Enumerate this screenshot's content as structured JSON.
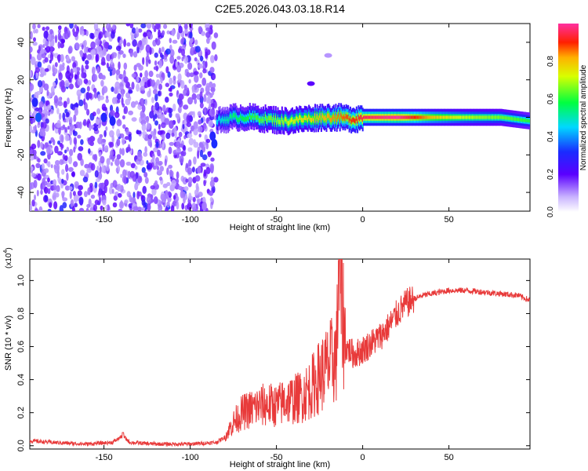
{
  "title": "C2E5.2026.043.03.18.R14",
  "colors": {
    "line": "#e83a3a",
    "accent_colorbar_stops": [
      "#e0e0ff",
      "#6a00ff",
      "#2020ff",
      "#00d0ff",
      "#00ff40",
      "#ffd000",
      "#ff2000",
      "#ff30a0"
    ]
  },
  "chart_data": [
    {
      "type": "heatmap",
      "xlabel": "Height of straight line (km)",
      "ylabel": "Frequency (Hz)",
      "xlim": [
        -193,
        97
      ],
      "ylim": [
        -50,
        50
      ],
      "xticks": [
        -150,
        -100,
        -50,
        0,
        50
      ],
      "xtick_labels": [
        "-150",
        "-100",
        "-50",
        "0",
        "50"
      ],
      "yticks": [
        -40,
        -20,
        0,
        20,
        40
      ],
      "ytick_labels": [
        "-40",
        "-20",
        "0",
        "20",
        "40"
      ],
      "grid": false,
      "colorbar": {
        "label": "Normalized spectral amplitude",
        "range": [
          0,
          1
        ],
        "ticks": [
          0.0,
          0.2,
          0.4,
          0.6,
          0.8
        ],
        "tick_labels": [
          "0.0",
          "0.2",
          "0.4",
          "0.6",
          "0.8"
        ],
        "placement": "right"
      },
      "noise_region_x": [
        -193,
        -85
      ],
      "ridge": [
        {
          "x": -85,
          "y": -2,
          "amp": 0.45
        },
        {
          "x": -75,
          "y": 0,
          "amp": 0.55
        },
        {
          "x": -65,
          "y": 0,
          "amp": 0.6
        },
        {
          "x": -55,
          "y": -1,
          "amp": 0.65
        },
        {
          "x": -45,
          "y": -2,
          "amp": 0.7
        },
        {
          "x": -35,
          "y": -1,
          "amp": 0.75
        },
        {
          "x": -25,
          "y": 0,
          "amp": 0.8
        },
        {
          "x": -15,
          "y": 0,
          "amp": 0.85
        },
        {
          "x": -5,
          "y": -1,
          "amp": 0.9
        },
        {
          "x": 0,
          "y": 0,
          "amp": 0.95
        },
        {
          "x": 20,
          "y": 0,
          "amp": 1.0
        },
        {
          "x": 40,
          "y": 0,
          "amp": 0.8
        },
        {
          "x": 60,
          "y": 0,
          "amp": 0.7
        },
        {
          "x": 80,
          "y": 0,
          "amp": 0.65
        },
        {
          "x": 97,
          "y": -2,
          "amp": 0.6
        }
      ],
      "secondary_features": [
        {
          "x": -30,
          "y": 18,
          "amp": 0.2
        },
        {
          "x": -20,
          "y": 33,
          "amp": 0.1
        }
      ]
    },
    {
      "type": "line",
      "xlabel": "Height of straight line (km)",
      "ylabel": "SNR (10 * v/v)",
      "y_multiplier": "(x10",
      "y_multiplier_exponent": "4",
      "y_multiplier_close": ")",
      "xlim": [
        -193,
        97
      ],
      "ylim": [
        -0.02,
        1.13
      ],
      "xticks": [
        -150,
        -100,
        -50,
        0,
        50
      ],
      "xtick_labels": [
        "-150",
        "-100",
        "-50",
        "0",
        "50"
      ],
      "yticks": [
        0.0,
        0.2,
        0.4,
        0.6,
        0.8,
        1.0
      ],
      "ytick_labels": [
        "0.0",
        "0.2",
        "0.4",
        "0.6",
        "0.8",
        "1.0"
      ],
      "grid": false,
      "series": [
        {
          "x": [
            -193,
            -180,
            -160,
            -145,
            -139,
            -135,
            -120,
            -100,
            -85,
            -80,
            -75,
            -70,
            -65,
            -60,
            -55,
            -50,
            -45,
            -40,
            -35,
            -30,
            -25,
            -20,
            -15,
            -14,
            -10,
            -5,
            0,
            5,
            10,
            15,
            20,
            25,
            30,
            35,
            40,
            50,
            60,
            70,
            80,
            90,
            97
          ],
          "y": [
            0.03,
            0.02,
            0.01,
            0.02,
            0.06,
            0.02,
            0.01,
            0.01,
            0.02,
            0.05,
            0.14,
            0.2,
            0.22,
            0.24,
            0.25,
            0.24,
            0.27,
            0.28,
            0.3,
            0.35,
            0.42,
            0.48,
            0.55,
            1.12,
            0.6,
            0.55,
            0.58,
            0.62,
            0.66,
            0.72,
            0.8,
            0.86,
            0.89,
            0.91,
            0.92,
            0.94,
            0.94,
            0.93,
            0.92,
            0.91,
            0.88
          ]
        }
      ]
    }
  ]
}
